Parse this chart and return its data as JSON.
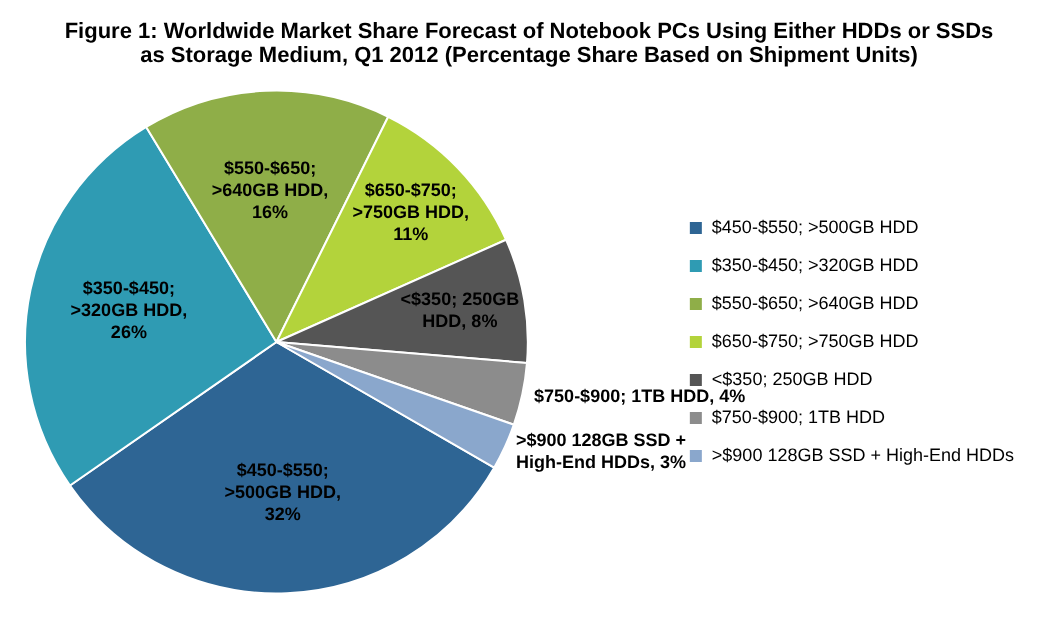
{
  "chart_data": {
    "type": "pie",
    "title": "Figure 1: Worldwide Market Share Forecast of Notebook PCs Using Either HDDs or SSDs as Storage Medium, Q1 2012 (Percentage Share Based on Shipment Units)",
    "categories": [
      "$450-$550; >500GB HDD",
      "$350-$450; >320GB HDD",
      "$550-$650; >640GB HDD",
      "$650-$750; >750GB HDD",
      "<$350; 250GB HDD",
      "$750-$900; 1TB HDD",
      ">$900 128GB SSD + High-End HDDs"
    ],
    "values": [
      32,
      26,
      16,
      11,
      8,
      4,
      3
    ],
    "value_labels": [
      "$450-$550; >500GB HDD, 32%",
      "$350-$450; >320GB HDD, 26%",
      "$550-$650; >640GB HDD, 16%",
      "$650-$750; >750GB HDD, 11%",
      "<$350; 250GB HDD, 8%",
      "$750-$900; 1TB HDD, 4%",
      ">$900 128GB SSD + High-End HDDs, 3%"
    ],
    "colors": [
      "#2e6594",
      "#2f9bb3",
      "#8fae48",
      "#b3d33b",
      "#555555",
      "#8c8c8c",
      "#8aa7cc"
    ],
    "legend": "right"
  }
}
